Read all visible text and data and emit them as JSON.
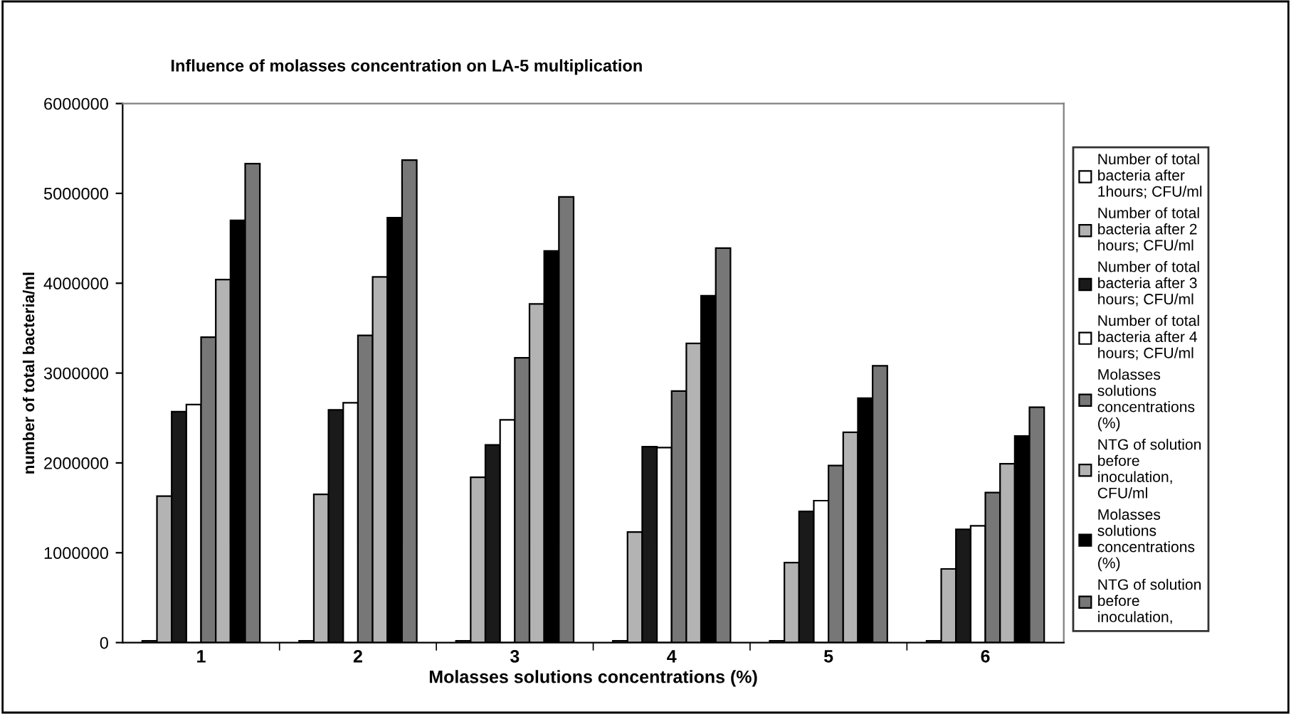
{
  "chart_data": {
    "type": "bar",
    "title": "Influence of molasses concentration on LA-5 multiplication",
    "xlabel": "Molasses solutions concentrations (%)",
    "ylabel": "number of total bacteria/ml",
    "categories": [
      "1",
      "2",
      "3",
      "4",
      "5",
      "6"
    ],
    "series": [
      {
        "name": "Number of total bacteria after 1hours; CFU/ml",
        "color": "#ffffff",
        "values": [
          20000,
          20000,
          20000,
          20000,
          20000,
          20000
        ]
      },
      {
        "name": "Number of total bacteria after 2 hours; CFU/ml",
        "color": "#b3b3b3",
        "values": [
          1630000,
          1650000,
          1840000,
          1230000,
          890000,
          820000
        ]
      },
      {
        "name": "Number of total bacteria after 3 hours; CFU/ml",
        "color": "#1a1a1a",
        "values": [
          2570000,
          2590000,
          2200000,
          2180000,
          1460000,
          1260000
        ]
      },
      {
        "name": "Number of total bacteria after 4 hours; CFU/ml",
        "color": "#ffffff",
        "values": [
          2650000,
          2670000,
          2480000,
          2170000,
          1580000,
          1300000
        ]
      },
      {
        "name": "Molasses solutions concentrations (%)",
        "color": "#777777",
        "values": [
          3400000,
          3420000,
          3170000,
          2800000,
          1970000,
          1670000
        ]
      },
      {
        "name": "NTG of solution before inoculation, CFU/ml",
        "color": "#b3b3b3",
        "values": [
          4040000,
          4070000,
          3770000,
          3330000,
          2340000,
          1990000
        ]
      },
      {
        "name": "Molasses solutions concentrations (%)",
        "color": "#000000",
        "values": [
          4700000,
          4730000,
          4360000,
          3860000,
          2720000,
          2300000
        ]
      },
      {
        "name": "NTG of solution before inoculation,",
        "color": "#777777",
        "values": [
          5330000,
          5370000,
          4960000,
          4390000,
          3080000,
          2620000
        ]
      }
    ],
    "ylim": [
      0,
      6000000
    ],
    "yticks": [
      0,
      1000000,
      2000000,
      3000000,
      4000000,
      5000000,
      6000000
    ],
    "grid": false,
    "legend": "right"
  }
}
